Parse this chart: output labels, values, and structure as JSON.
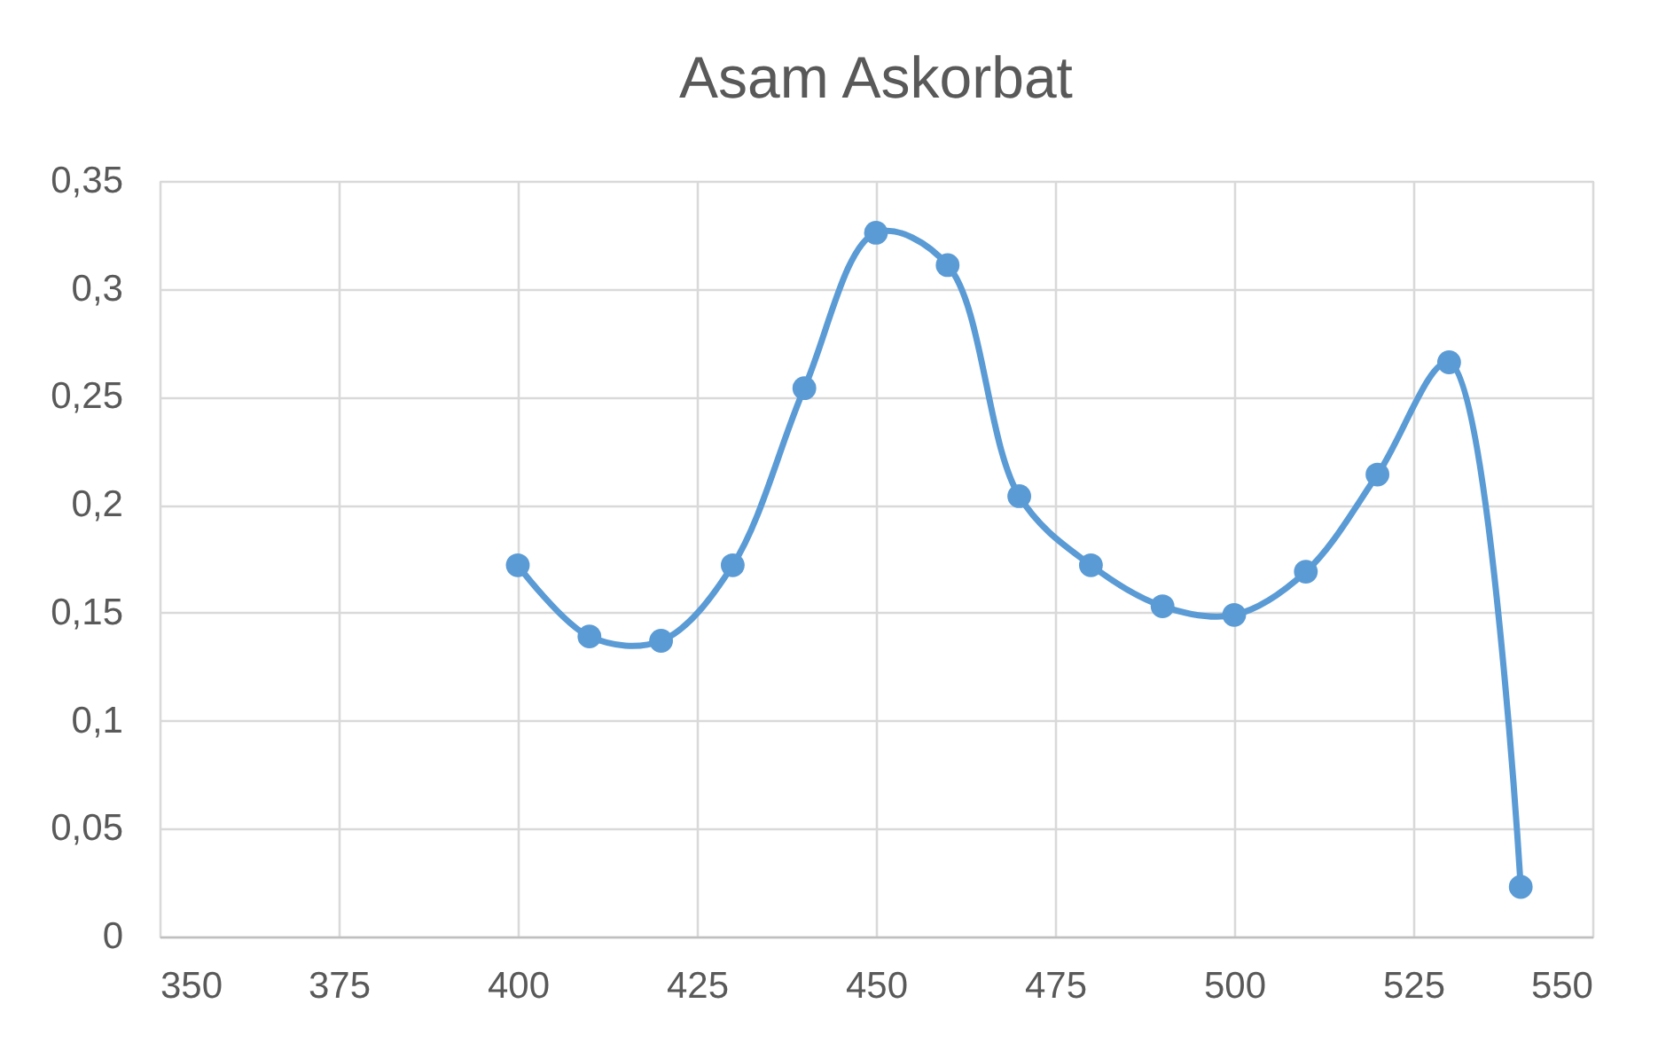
{
  "chart_data": {
    "type": "line",
    "title": "Asam Askorbat",
    "x": [
      400,
      410,
      420,
      430,
      440,
      450,
      460,
      470,
      480,
      490,
      500,
      510,
      520,
      530,
      540
    ],
    "series": [
      {
        "color": "#5b9bd5",
        "values": [
          0.172,
          0.139,
          0.137,
          0.172,
          0.254,
          0.326,
          0.311,
          0.204,
          0.172,
          0.153,
          0.149,
          0.169,
          0.214,
          0.266,
          0.023
        ]
      }
    ],
    "xlim": [
      350,
      550
    ],
    "xticks": [
      350,
      375,
      400,
      425,
      450,
      475,
      500,
      525,
      550
    ],
    "ylim": [
      0,
      0.35
    ],
    "yticks": [
      0,
      {
        "value": 0.05,
        "label": "0,05"
      },
      {
        "value": 0.1,
        "label": "0,1"
      },
      {
        "value": 0.15,
        "label": "0,15"
      },
      {
        "value": 0.2,
        "label": "0,2"
      },
      {
        "value": 0.25,
        "label": "0,25"
      },
      {
        "value": 0.3,
        "label": "0,3"
      },
      {
        "value": 0.35,
        "label": "0,35"
      }
    ],
    "grid": true,
    "marker": "circle",
    "line_style": "solid"
  }
}
